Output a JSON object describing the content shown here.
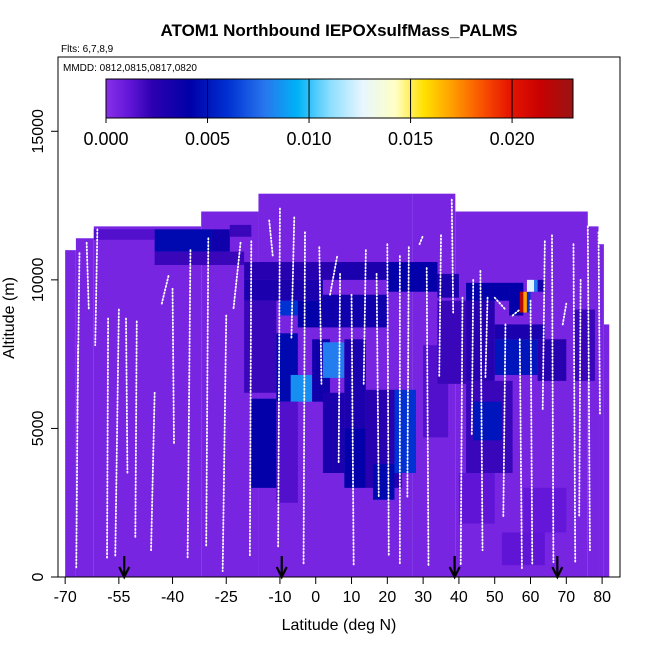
{
  "chart_data": {
    "type": "heatmap",
    "title": "ATOM1 Northbound IEPOXsulfMass_PALMS",
    "subtitle_flights": "Flts: 6,7,8,9",
    "subtitle_dates": "MMDD: 0812,0815,0817,0820",
    "xlabel": "Latitude (deg N)",
    "ylabel": "Altitude (m)",
    "xlim": [
      -72,
      85
    ],
    "ylim": [
      0,
      17500
    ],
    "x_ticks": [
      -70,
      -55,
      -40,
      -25,
      -10,
      0,
      10,
      20,
      30,
      40,
      50,
      60,
      70,
      80
    ],
    "x_tick_labels": [
      "-70",
      "-55",
      "-40",
      "-25",
      "-10",
      "0",
      "10",
      "20",
      "30",
      "40",
      "50",
      "60",
      "70",
      "80"
    ],
    "y_ticks": [
      0,
      5000,
      10000,
      15000
    ],
    "y_tick_labels": [
      "0",
      "5000",
      "10000",
      "15000"
    ],
    "colorbar": {
      "range": [
        0.0,
        0.023
      ],
      "ticks": [
        0.0,
        0.005,
        0.01,
        0.015,
        0.02
      ],
      "tick_labels": [
        "0.000",
        "0.005",
        "0.010",
        "0.015",
        "0.020"
      ]
    },
    "background_value": 0.0005,
    "envelope": [
      {
        "x0": -70,
        "x1": -67,
        "top": 11000
      },
      {
        "x0": -67,
        "x1": -62,
        "top": 11400
      },
      {
        "x0": -62,
        "x1": -32,
        "top": 11800
      },
      {
        "x0": -32,
        "x1": -16,
        "top": 12300
      },
      {
        "x0": -16,
        "x1": 27,
        "top": 12900
      },
      {
        "x0": 27,
        "x1": 39,
        "top": 12900
      },
      {
        "x0": 39,
        "x1": 76,
        "top": 12300
      },
      {
        "x0": 76,
        "x1": 79,
        "top": 11800
      },
      {
        "x0": 79,
        "x1": 80.5,
        "top": 11200
      },
      {
        "x0": 80.5,
        "x1": 82,
        "top": 8500
      }
    ],
    "cells": [
      {
        "lat0": -62,
        "lat1": -45,
        "alt0": 11350,
        "alt1": 11700,
        "v": 0.0015
      },
      {
        "lat0": -45,
        "lat1": -29,
        "alt0": 10950,
        "alt1": 11700,
        "v": 0.0045
      },
      {
        "lat0": -29,
        "lat1": -24,
        "alt0": 10950,
        "alt1": 11700,
        "v": 0.0035
      },
      {
        "lat0": -24,
        "lat1": -18,
        "alt0": 11450,
        "alt1": 11850,
        "v": 0.002
      },
      {
        "lat0": -45,
        "lat1": -20,
        "alt0": 10500,
        "alt1": 10950,
        "v": 0.002
      },
      {
        "lat0": -20,
        "lat1": 5,
        "alt0": 10000,
        "alt1": 10600,
        "v": 0.0025
      },
      {
        "lat0": 5,
        "lat1": 20,
        "alt0": 10000,
        "alt1": 10600,
        "v": 0.003
      },
      {
        "lat0": 20,
        "lat1": 34,
        "alt0": 9600,
        "alt1": 10600,
        "v": 0.004
      },
      {
        "lat0": 34,
        "lat1": 40,
        "alt0": 9400,
        "alt1": 10200,
        "v": 0.003
      },
      {
        "lat0": -20,
        "lat1": 2,
        "alt0": 9300,
        "alt1": 10000,
        "v": 0.003
      },
      {
        "lat0": -10,
        "lat1": -5,
        "alt0": 8800,
        "alt1": 9300,
        "v": 0.006
      },
      {
        "lat0": -5,
        "lat1": 2,
        "alt0": 8400,
        "alt1": 9300,
        "v": 0.004
      },
      {
        "lat0": 2,
        "lat1": 20,
        "alt0": 8400,
        "alt1": 9500,
        "v": 0.0035
      },
      {
        "lat0": -20,
        "lat1": -11,
        "alt0": 6200,
        "alt1": 9300,
        "v": 0.002
      },
      {
        "lat0": -11,
        "lat1": -5,
        "alt0": 5900,
        "alt1": 8200,
        "v": 0.0045
      },
      {
        "lat0": -7,
        "lat1": -1,
        "alt0": 5900,
        "alt1": 6800,
        "v": 0.0085
      },
      {
        "lat0": -1,
        "lat1": 4,
        "alt0": 5900,
        "alt1": 8000,
        "v": 0.0035
      },
      {
        "lat0": 2,
        "lat1": 8,
        "alt0": 6700,
        "alt1": 7900,
        "v": 0.008
      },
      {
        "lat0": 8,
        "lat1": 14,
        "alt0": 5000,
        "alt1": 8000,
        "v": 0.003
      },
      {
        "lat0": -18,
        "lat1": -11,
        "alt0": 3000,
        "alt1": 6000,
        "v": 0.004
      },
      {
        "lat0": -11,
        "lat1": -5,
        "alt0": 2500,
        "alt1": 5900,
        "v": 0.0015
      },
      {
        "lat0": 2,
        "lat1": 8,
        "alt0": 3500,
        "alt1": 6200,
        "v": 0.003
      },
      {
        "lat0": 8,
        "lat1": 14,
        "alt0": 3000,
        "alt1": 5000,
        "v": 0.004
      },
      {
        "lat0": 14,
        "lat1": 24,
        "alt0": 3000,
        "alt1": 6300,
        "v": 0.0025
      },
      {
        "lat0": 16,
        "lat1": 22,
        "alt0": 2600,
        "alt1": 3800,
        "v": 0.0045
      },
      {
        "lat0": 22,
        "lat1": 28,
        "alt0": 3500,
        "alt1": 6300,
        "v": 0.006
      },
      {
        "lat0": 30,
        "lat1": 37,
        "alt0": 4700,
        "alt1": 7800,
        "v": 0.0015
      },
      {
        "lat0": 34,
        "lat1": 42,
        "alt0": 6500,
        "alt1": 9300,
        "v": 0.002
      },
      {
        "lat0": 42,
        "lat1": 50,
        "alt0": 6600,
        "alt1": 9300,
        "v": 0.0025
      },
      {
        "lat0": 50,
        "lat1": 62,
        "alt0": 6800,
        "alt1": 8000,
        "v": 0.005
      },
      {
        "lat0": 50,
        "lat1": 64,
        "alt0": 8000,
        "alt1": 8500,
        "v": 0.003
      },
      {
        "lat0": 62,
        "lat1": 70,
        "alt0": 6600,
        "alt1": 8000,
        "v": 0.0025
      },
      {
        "lat0": 42,
        "lat1": 54,
        "alt0": 9300,
        "alt1": 9900,
        "v": 0.004
      },
      {
        "lat0": 54,
        "lat1": 58,
        "alt0": 8800,
        "alt1": 9900,
        "v": 0.004
      },
      {
        "lat0": 57,
        "lat1": 58,
        "alt0": 8900,
        "alt1": 9600,
        "v": 0.022
      },
      {
        "lat0": 58,
        "lat1": 59,
        "alt0": 8900,
        "alt1": 9600,
        "v": 0.017
      },
      {
        "lat0": 59,
        "lat1": 60,
        "alt0": 8900,
        "alt1": 9600,
        "v": 0.006
      },
      {
        "lat0": 59,
        "lat1": 61,
        "alt0": 9600,
        "alt1": 10000,
        "v": 0.0125
      },
      {
        "lat0": 61,
        "lat1": 62,
        "alt0": 9600,
        "alt1": 10000,
        "v": 0.008
      },
      {
        "lat0": 62,
        "lat1": 64,
        "alt0": 9600,
        "alt1": 10000,
        "v": 0.003
      },
      {
        "lat0": 42,
        "lat1": 55,
        "alt0": 3500,
        "alt1": 6600,
        "v": 0.002
      },
      {
        "lat0": 44,
        "lat1": 52,
        "alt0": 4600,
        "alt1": 5900,
        "v": 0.005
      },
      {
        "lat0": 40,
        "lat1": 50,
        "alt0": 1800,
        "alt1": 3500,
        "v": 0.0012
      },
      {
        "lat0": 52,
        "lat1": 64,
        "alt0": 400,
        "alt1": 1500,
        "v": 0.0012
      },
      {
        "lat0": 58,
        "lat1": 70,
        "alt0": 1500,
        "alt1": 3000,
        "v": 0.0011
      },
      {
        "lat0": 72,
        "lat1": 78,
        "alt0": 6600,
        "alt1": 9000,
        "v": 0.002
      }
    ],
    "flight_tracks": [
      {
        "lat": [
          -66,
          -66.6
        ],
        "alt": [
          10900,
          5200
        ]
      },
      {
        "lat": [
          -66.4,
          -66.9
        ],
        "alt": [
          7800,
          300
        ]
      },
      {
        "lat": [
          -64,
          -63.4
        ],
        "alt": [
          11250,
          9000
        ]
      },
      {
        "lat": [
          -61,
          -61.6
        ],
        "alt": [
          11700,
          7800
        ]
      },
      {
        "lat": [
          -58,
          -58.3
        ],
        "alt": [
          8700,
          600
        ]
      },
      {
        "lat": [
          -55,
          -56
        ],
        "alt": [
          9000,
          700
        ]
      },
      {
        "lat": [
          -53,
          -52.6
        ],
        "alt": [
          8700,
          3500
        ]
      },
      {
        "lat": [
          -50,
          -50.4
        ],
        "alt": [
          8600,
          1300
        ]
      },
      {
        "lat": [
          -45,
          -46
        ],
        "alt": [
          6200,
          900
        ]
      },
      {
        "lat": [
          -43,
          -41
        ],
        "alt": [
          9200,
          10200
        ]
      },
      {
        "lat": [
          -40,
          -39.6
        ],
        "alt": [
          9700,
          4500
        ]
      },
      {
        "lat": [
          -35,
          -35.8
        ],
        "alt": [
          11000,
          600
        ]
      },
      {
        "lat": [
          -30,
          -30.6
        ],
        "alt": [
          11400,
          1000
        ]
      },
      {
        "lat": [
          -25,
          -26
        ],
        "alt": [
          8800,
          200
        ]
      },
      {
        "lat": [
          -21,
          -23
        ],
        "alt": [
          11250,
          9000
        ]
      },
      {
        "lat": [
          -18,
          -18.4
        ],
        "alt": [
          11300,
          700
        ]
      },
      {
        "lat": [
          -13,
          -12
        ],
        "alt": [
          12000,
          10800
        ]
      },
      {
        "lat": [
          -10,
          -10.5
        ],
        "alt": [
          12400,
          1000
        ]
      },
      {
        "lat": [
          -6,
          -6.8
        ],
        "alt": [
          12100,
          8000
        ]
      },
      {
        "lat": [
          -3,
          -3.4
        ],
        "alt": [
          11600,
          400
        ]
      },
      {
        "lat": [
          1,
          1.6
        ],
        "alt": [
          11100,
          6500
        ]
      },
      {
        "lat": [
          4,
          6
        ],
        "alt": [
          9500,
          10800
        ]
      },
      {
        "lat": [
          6.8,
          6.4
        ],
        "alt": [
          10200,
          3800
        ]
      },
      {
        "lat": [
          10,
          10.6
        ],
        "alt": [
          9500,
          400
        ]
      },
      {
        "lat": [
          14,
          13.4
        ],
        "alt": [
          11000,
          6500
        ]
      },
      {
        "lat": [
          17,
          17.6
        ],
        "alt": [
          10200,
          2700
        ]
      },
      {
        "lat": [
          20,
          20.4
        ],
        "alt": [
          11200,
          700
        ]
      },
      {
        "lat": [
          23.5,
          23.5
        ],
        "alt": [
          10800,
          400
        ]
      },
      {
        "lat": [
          26,
          25.6
        ],
        "alt": [
          11100,
          2700
        ]
      },
      {
        "lat": [
          29,
          30
        ],
        "alt": [
          11200,
          11500
        ]
      },
      {
        "lat": [
          31,
          31.5
        ],
        "alt": [
          10400,
          400
        ]
      },
      {
        "lat": [
          35,
          34.5
        ],
        "alt": [
          11500,
          6700
        ]
      },
      {
        "lat": [
          38,
          38.4
        ],
        "alt": [
          12700,
          8900
        ]
      },
      {
        "lat": [
          41,
          40.5
        ],
        "alt": [
          9400,
          400
        ]
      },
      {
        "lat": [
          44,
          43.6
        ],
        "alt": [
          10000,
          4800
        ]
      },
      {
        "lat": [
          46,
          46.6
        ],
        "alt": [
          10300,
          900
        ]
      },
      {
        "lat": [
          48,
          47.4
        ],
        "alt": [
          9400,
          6700
        ]
      },
      {
        "lat": [
          50,
          53
        ],
        "alt": [
          9400,
          9000
        ]
      },
      {
        "lat": [
          55,
          57
        ],
        "alt": [
          8800,
          9000
        ]
      },
      {
        "lat": [
          53,
          52.4
        ],
        "alt": [
          8500,
          2000
        ]
      },
      {
        "lat": [
          57,
          57.6
        ],
        "alt": [
          8000,
          300
        ]
      },
      {
        "lat": [
          60,
          60.5
        ],
        "alt": [
          9300,
          400
        ]
      },
      {
        "lat": [
          64,
          63.4
        ],
        "alt": [
          11300,
          5600
        ]
      },
      {
        "lat": [
          66,
          66.4
        ],
        "alt": [
          11500,
          500
        ]
      },
      {
        "lat": [
          69,
          70
        ],
        "alt": [
          8500,
          9200
        ]
      },
      {
        "lat": [
          72,
          72.5
        ],
        "alt": [
          11200,
          500
        ]
      },
      {
        "lat": [
          74,
          73.6
        ],
        "alt": [
          10000,
          2000
        ]
      },
      {
        "lat": [
          76,
          76.6
        ],
        "alt": [
          11800,
          900
        ]
      },
      {
        "lat": [
          79,
          79.4
        ],
        "alt": [
          11600,
          5500
        ]
      }
    ],
    "arrows_lat": [
      -53.5,
      -9.5,
      38.8,
      67.5
    ]
  }
}
